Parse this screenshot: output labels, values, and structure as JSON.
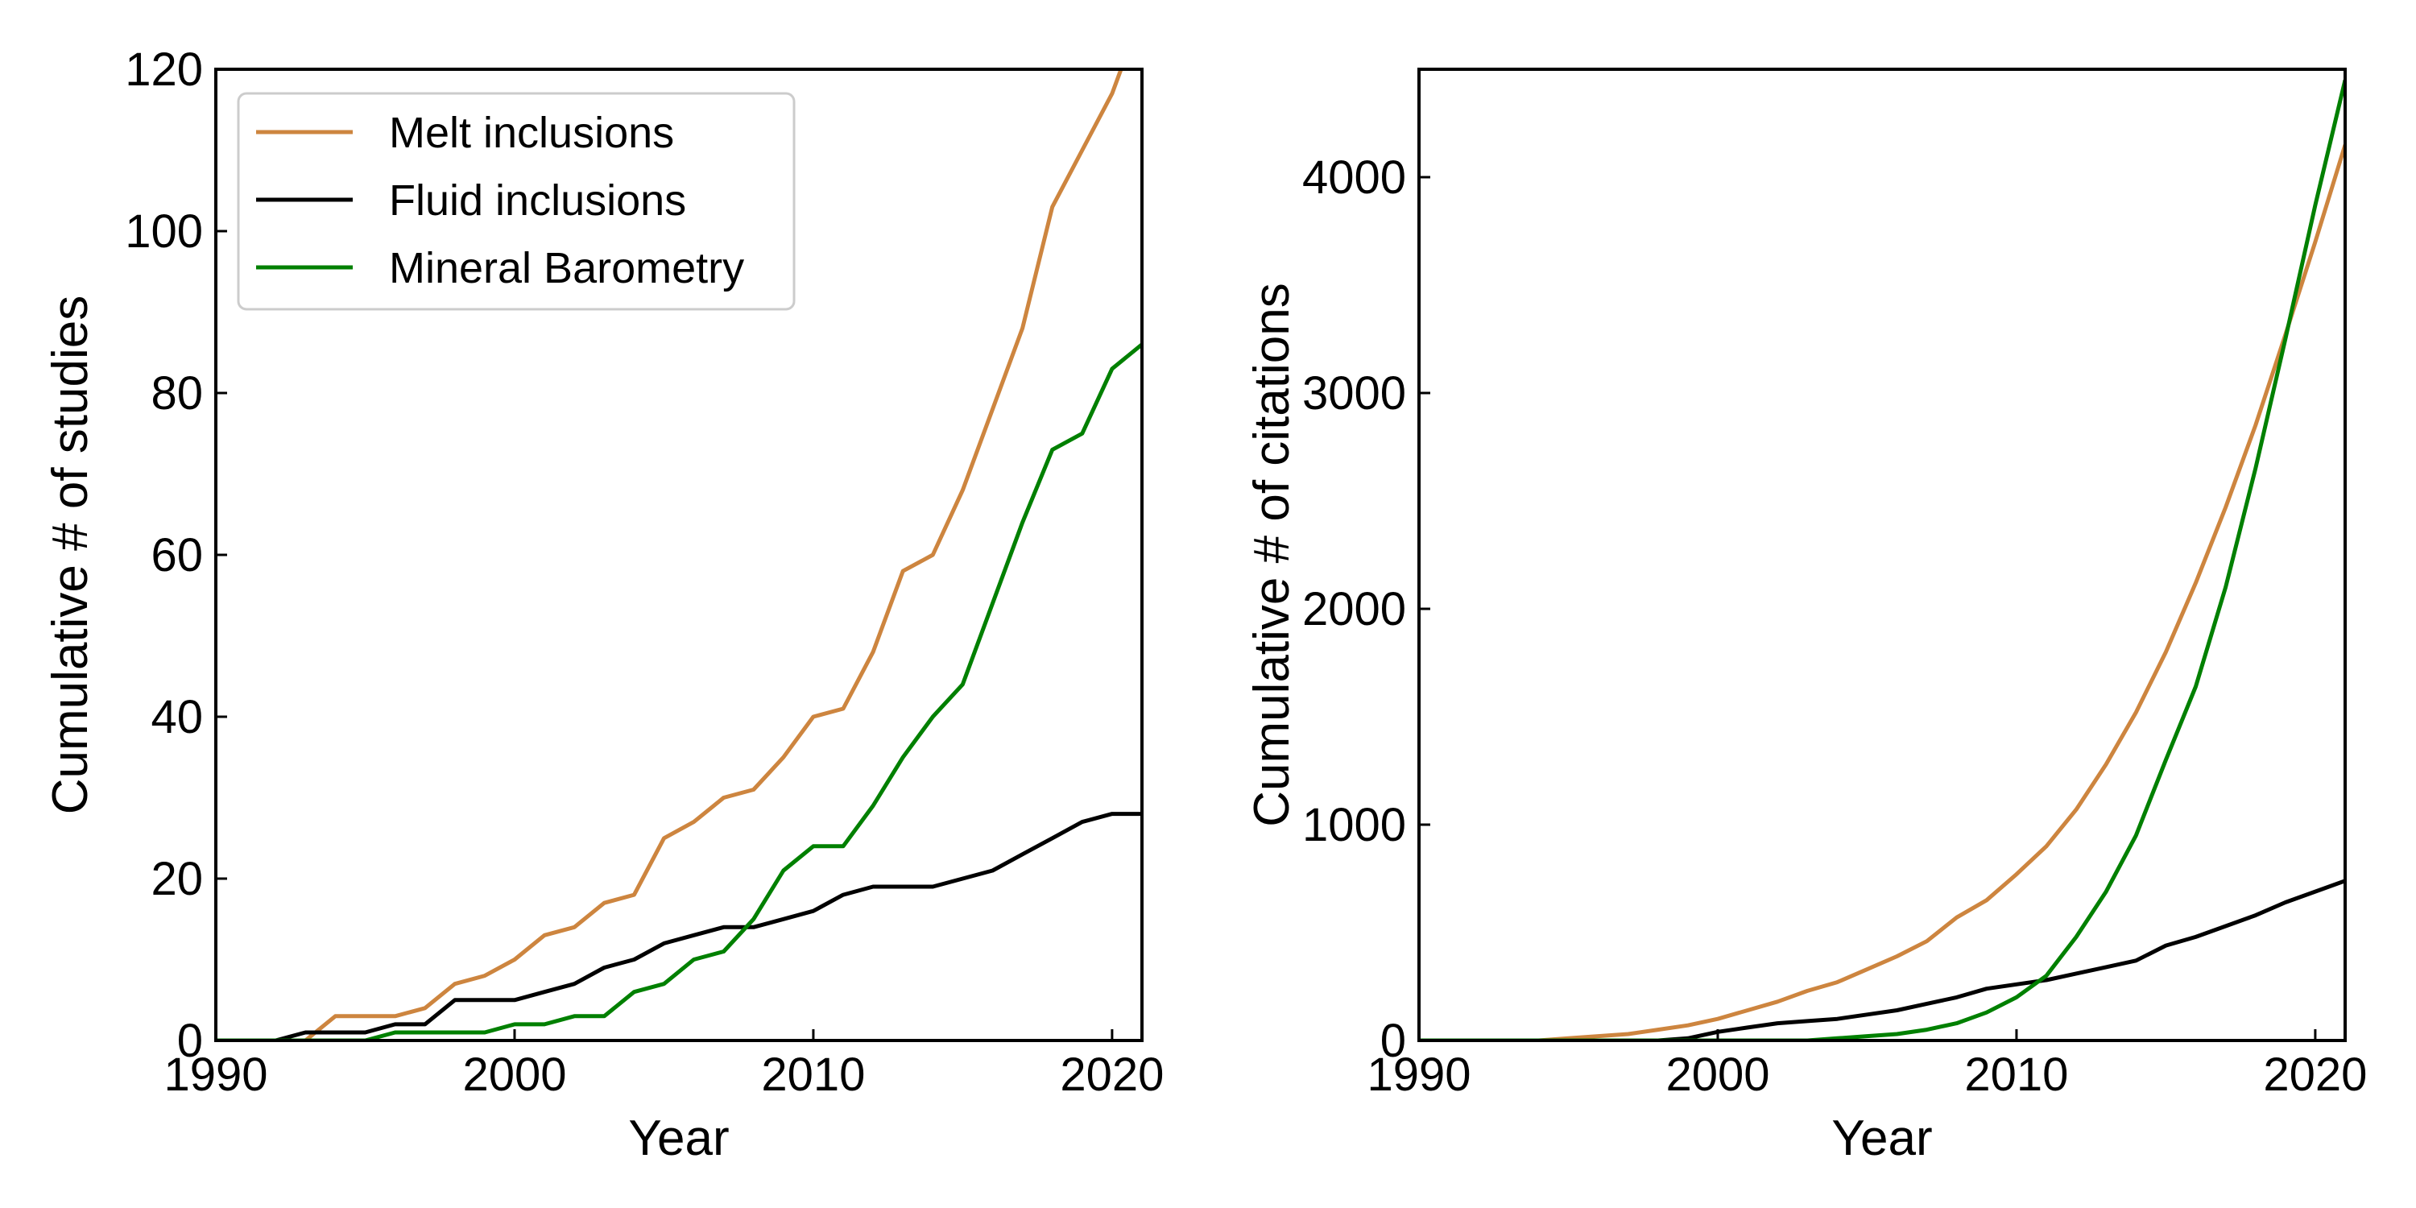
{
  "colors": {
    "melt": "#CD853F",
    "fluid": "#000000",
    "mineral": "#008000"
  },
  "chart_data": [
    {
      "type": "line",
      "xlabel": "Year",
      "ylabel": "Cumulative # of studies",
      "xlim": [
        1990,
        2021
      ],
      "ylim": [
        0,
        120
      ],
      "xticks": [
        1990,
        2000,
        2010,
        2020
      ],
      "yticks": [
        0,
        20,
        40,
        60,
        80,
        100,
        120
      ],
      "grid": false,
      "legend": "top-left",
      "x": [
        1990,
        1991,
        1992,
        1993,
        1994,
        1995,
        1996,
        1997,
        1998,
        1999,
        2000,
        2001,
        2002,
        2003,
        2004,
        2005,
        2006,
        2007,
        2008,
        2009,
        2010,
        2011,
        2012,
        2013,
        2014,
        2015,
        2016,
        2017,
        2018,
        2019,
        2020,
        2021
      ],
      "series": [
        {
          "name": "Melt inclusions",
          "color": "melt",
          "values": [
            0,
            0,
            0,
            0,
            3,
            3,
            3,
            4,
            7,
            8,
            10,
            13,
            14,
            17,
            18,
            25,
            27,
            30,
            31,
            35,
            40,
            41,
            48,
            58,
            60,
            68,
            78,
            88,
            103,
            110,
            117,
            127
          ]
        },
        {
          "name": "Fluid inclusions",
          "color": "fluid",
          "values": [
            0,
            0,
            0,
            1,
            1,
            1,
            2,
            2,
            5,
            5,
            5,
            6,
            7,
            9,
            10,
            12,
            13,
            14,
            14,
            15,
            16,
            18,
            19,
            19,
            19,
            20,
            21,
            23,
            25,
            27,
            28,
            28
          ]
        },
        {
          "name": "Mineral Barometry",
          "color": "mineral",
          "values": [
            0,
            0,
            0,
            0,
            0,
            0,
            1,
            1,
            1,
            1,
            2,
            2,
            3,
            3,
            6,
            7,
            10,
            11,
            15,
            21,
            24,
            24,
            29,
            35,
            40,
            44,
            54,
            64,
            73,
            75,
            83,
            86
          ]
        }
      ]
    },
    {
      "type": "line",
      "xlabel": "Year",
      "ylabel": "Cumulative # of citations",
      "xlim": [
        1990,
        2021
      ],
      "ylim": [
        0,
        4500
      ],
      "xticks": [
        1990,
        2000,
        2010,
        2020
      ],
      "yticks": [
        0,
        1000,
        2000,
        3000,
        4000
      ],
      "grid": false,
      "x": [
        1990,
        1991,
        1992,
        1993,
        1994,
        1995,
        1996,
        1997,
        1998,
        1999,
        2000,
        2001,
        2002,
        2003,
        2004,
        2005,
        2006,
        2007,
        2008,
        2009,
        2010,
        2011,
        2012,
        2013,
        2014,
        2015,
        2016,
        2017,
        2018,
        2019,
        2020,
        2021
      ],
      "series": [
        {
          "name": "Melt inclusions",
          "color": "melt",
          "values": [
            0,
            0,
            0,
            0,
            0,
            10,
            20,
            30,
            50,
            70,
            100,
            140,
            180,
            230,
            270,
            330,
            390,
            460,
            570,
            650,
            770,
            900,
            1070,
            1280,
            1520,
            1800,
            2120,
            2470,
            2850,
            3270,
            3700,
            4150
          ]
        },
        {
          "name": "Fluid inclusions",
          "color": "fluid",
          "values": [
            0,
            0,
            0,
            0,
            0,
            0,
            0,
            0,
            0,
            10,
            40,
            60,
            80,
            90,
            100,
            120,
            140,
            170,
            200,
            240,
            260,
            280,
            310,
            340,
            370,
            440,
            480,
            530,
            580,
            640,
            690,
            740
          ]
        },
        {
          "name": "Mineral Barometry",
          "color": "mineral",
          "values": [
            0,
            0,
            0,
            0,
            0,
            0,
            0,
            0,
            0,
            0,
            0,
            0,
            0,
            0,
            10,
            20,
            30,
            50,
            80,
            130,
            200,
            300,
            480,
            690,
            950,
            1300,
            1640,
            2100,
            2650,
            3250,
            3870,
            4450
          ]
        }
      ]
    }
  ]
}
